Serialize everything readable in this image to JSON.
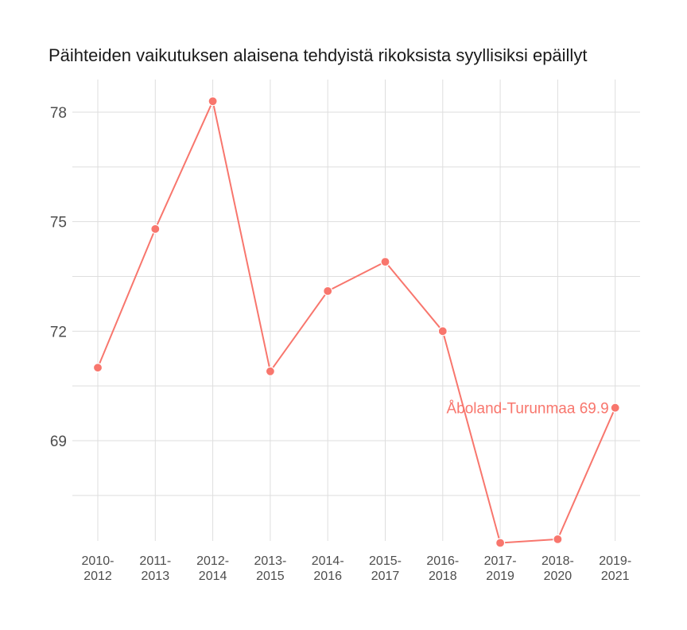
{
  "chart_data": {
    "type": "line",
    "title": "Päihteiden vaikutuksen alaisena tehdyistä rikoksista syyllisiksi epäillyt",
    "xlabel": "",
    "ylabel": "",
    "categories": [
      [
        "2010-",
        "2012"
      ],
      [
        "2011-",
        "2013"
      ],
      [
        "2012-",
        "2014"
      ],
      [
        "2013-",
        "2015"
      ],
      [
        "2014-",
        "2016"
      ],
      [
        "2015-",
        "2017"
      ],
      [
        "2016-",
        "2018"
      ],
      [
        "2017-",
        "2019"
      ],
      [
        "2018-",
        "2020"
      ],
      [
        "2019-",
        "2021"
      ]
    ],
    "series": [
      {
        "values": [
          71.0,
          74.8,
          78.3,
          70.9,
          73.1,
          73.9,
          72.0,
          66.2,
          66.3,
          69.9
        ],
        "color": "#f8766d"
      }
    ],
    "ylim": [
      65.5,
      79.5
    ],
    "yticks": [
      69,
      72,
      75,
      78
    ],
    "grid": true,
    "annotation": {
      "text": "Åboland-Turunmaa 69.9",
      "point_index": 9
    }
  }
}
